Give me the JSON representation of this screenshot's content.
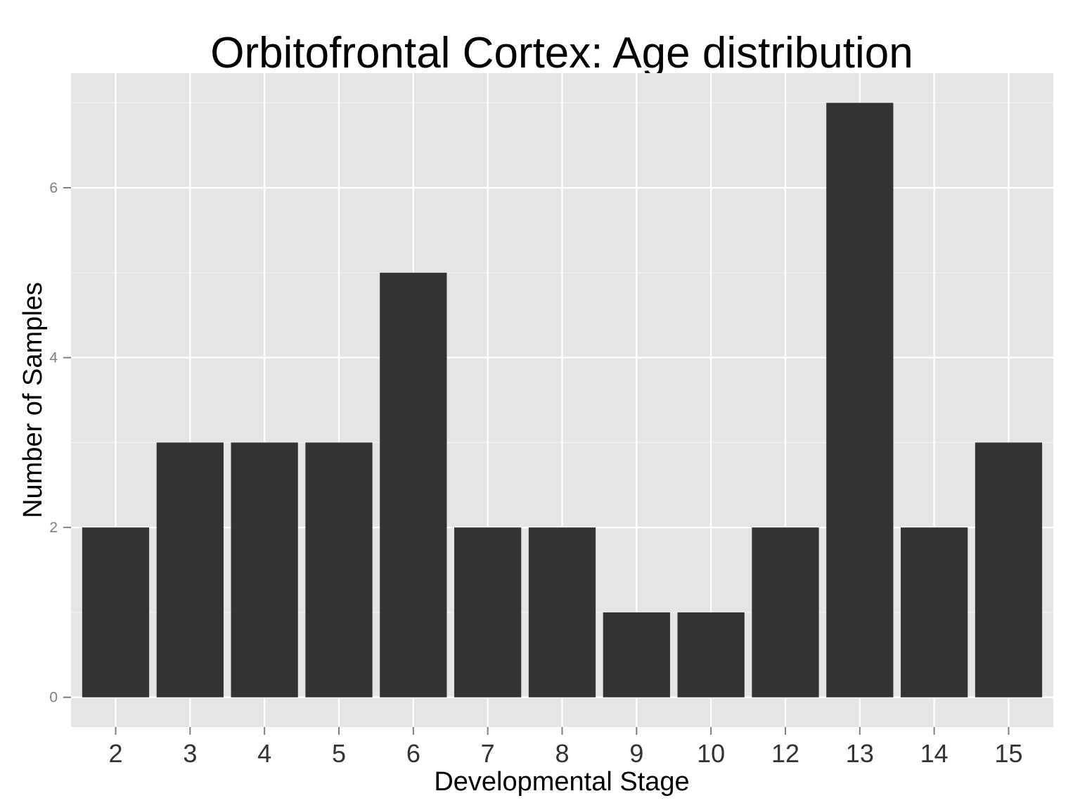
{
  "chart_data": {
    "type": "bar",
    "title": "Orbitofrontal Cortex: Age distribution",
    "xlabel": "Developmental Stage",
    "ylabel": "Number of Samples",
    "categories": [
      "2",
      "3",
      "4",
      "5",
      "6",
      "7",
      "8",
      "9",
      "10",
      "12",
      "13",
      "14",
      "15"
    ],
    "values": [
      2,
      3,
      3,
      3,
      5,
      2,
      2,
      1,
      1,
      2,
      7,
      2,
      3
    ],
    "ylim": [
      -0.35,
      7.35
    ],
    "yticks": [
      0,
      2,
      4,
      6
    ],
    "grid": true,
    "legend": "none",
    "colors": {
      "bar": "#333333",
      "panel": "#e5e5e5",
      "grid_major": "#ffffff",
      "grid_minor": "#f2f2f2",
      "tick": "#7f7f7f"
    }
  }
}
